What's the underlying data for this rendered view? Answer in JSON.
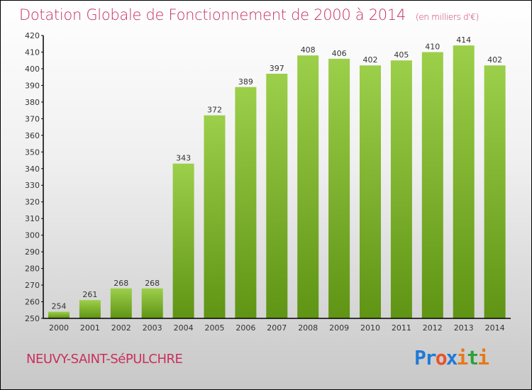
{
  "chart_data": {
    "type": "bar",
    "title": "Dotation Globale de Fonctionnement de 2000 à 2014",
    "unit": "(en milliers d'€)",
    "categories": [
      "2000",
      "2001",
      "2002",
      "2003",
      "2004",
      "2005",
      "2006",
      "2007",
      "2008",
      "2009",
      "2010",
      "2011",
      "2012",
      "2013",
      "2014"
    ],
    "values": [
      254,
      261,
      268,
      268,
      343,
      372,
      389,
      397,
      408,
      406,
      402,
      405,
      410,
      414,
      402
    ],
    "ylim": [
      250,
      420
    ],
    "ytick_step": 10,
    "xlabel": "",
    "ylabel": "",
    "bar_color": "#7ab32e",
    "grid": false
  },
  "commune": "NEUVY-SAINT-SéPULCHRE",
  "logo": {
    "letters": [
      "P",
      "r",
      "o",
      "x",
      "i",
      "t",
      "i"
    ],
    "colors": [
      "#1f7ad6",
      "#1f7ad6",
      "#e8522a",
      "#1f7ad6",
      "#e8781a",
      "#2fa03a",
      "#e8781a"
    ]
  }
}
